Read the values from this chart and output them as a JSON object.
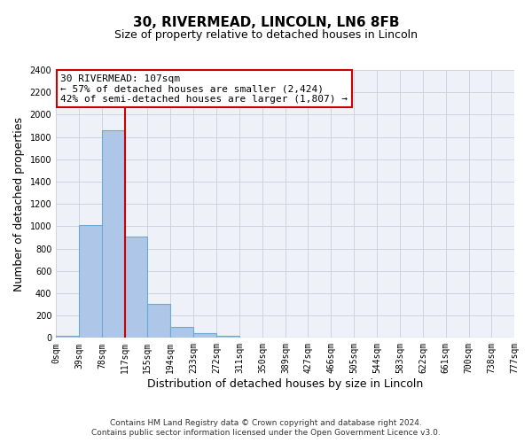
{
  "title": "30, RIVERMEAD, LINCOLN, LN6 8FB",
  "subtitle": "Size of property relative to detached houses in Lincoln",
  "xlabel": "Distribution of detached houses by size in Lincoln",
  "ylabel": "Number of detached properties",
  "bin_edges": [
    0,
    39,
    78,
    117,
    155,
    194,
    233,
    272,
    311,
    350,
    389,
    427,
    466,
    505,
    544,
    583,
    622,
    661,
    700,
    738,
    777
  ],
  "bin_labels": [
    "0sqm",
    "39sqm",
    "78sqm",
    "117sqm",
    "155sqm",
    "194sqm",
    "233sqm",
    "272sqm",
    "311sqm",
    "350sqm",
    "389sqm",
    "427sqm",
    "466sqm",
    "505sqm",
    "544sqm",
    "583sqm",
    "622sqm",
    "661sqm",
    "700sqm",
    "738sqm",
    "777sqm"
  ],
  "counts": [
    20,
    1010,
    1860,
    905,
    305,
    100,
    45,
    20,
    0,
    0,
    0,
    0,
    0,
    0,
    0,
    0,
    0,
    0,
    0,
    0
  ],
  "bar_color": "#aec6e8",
  "bar_edge_color": "#6aaad4",
  "vline_x": 117,
  "vline_color": "#cc0000",
  "annotation_title": "30 RIVERMEAD: 107sqm",
  "annotation_line1": "← 57% of detached houses are smaller (2,424)",
  "annotation_line2": "42% of semi-detached houses are larger (1,807) →",
  "annotation_box_color": "#ffffff",
  "annotation_box_edge": "#cc0000",
  "ylim": [
    0,
    2400
  ],
  "yticks": [
    0,
    200,
    400,
    600,
    800,
    1000,
    1200,
    1400,
    1600,
    1800,
    2000,
    2200,
    2400
  ],
  "footer1": "Contains HM Land Registry data © Crown copyright and database right 2024.",
  "footer2": "Contains public sector information licensed under the Open Government Licence v3.0.",
  "bg_color": "#ffffff",
  "plot_bg_color": "#eef2f8",
  "grid_color": "#c8d0dc",
  "title_fontsize": 11,
  "subtitle_fontsize": 9,
  "axis_label_fontsize": 9,
  "tick_fontsize": 7,
  "annotation_fontsize": 8,
  "footer_fontsize": 6.5
}
